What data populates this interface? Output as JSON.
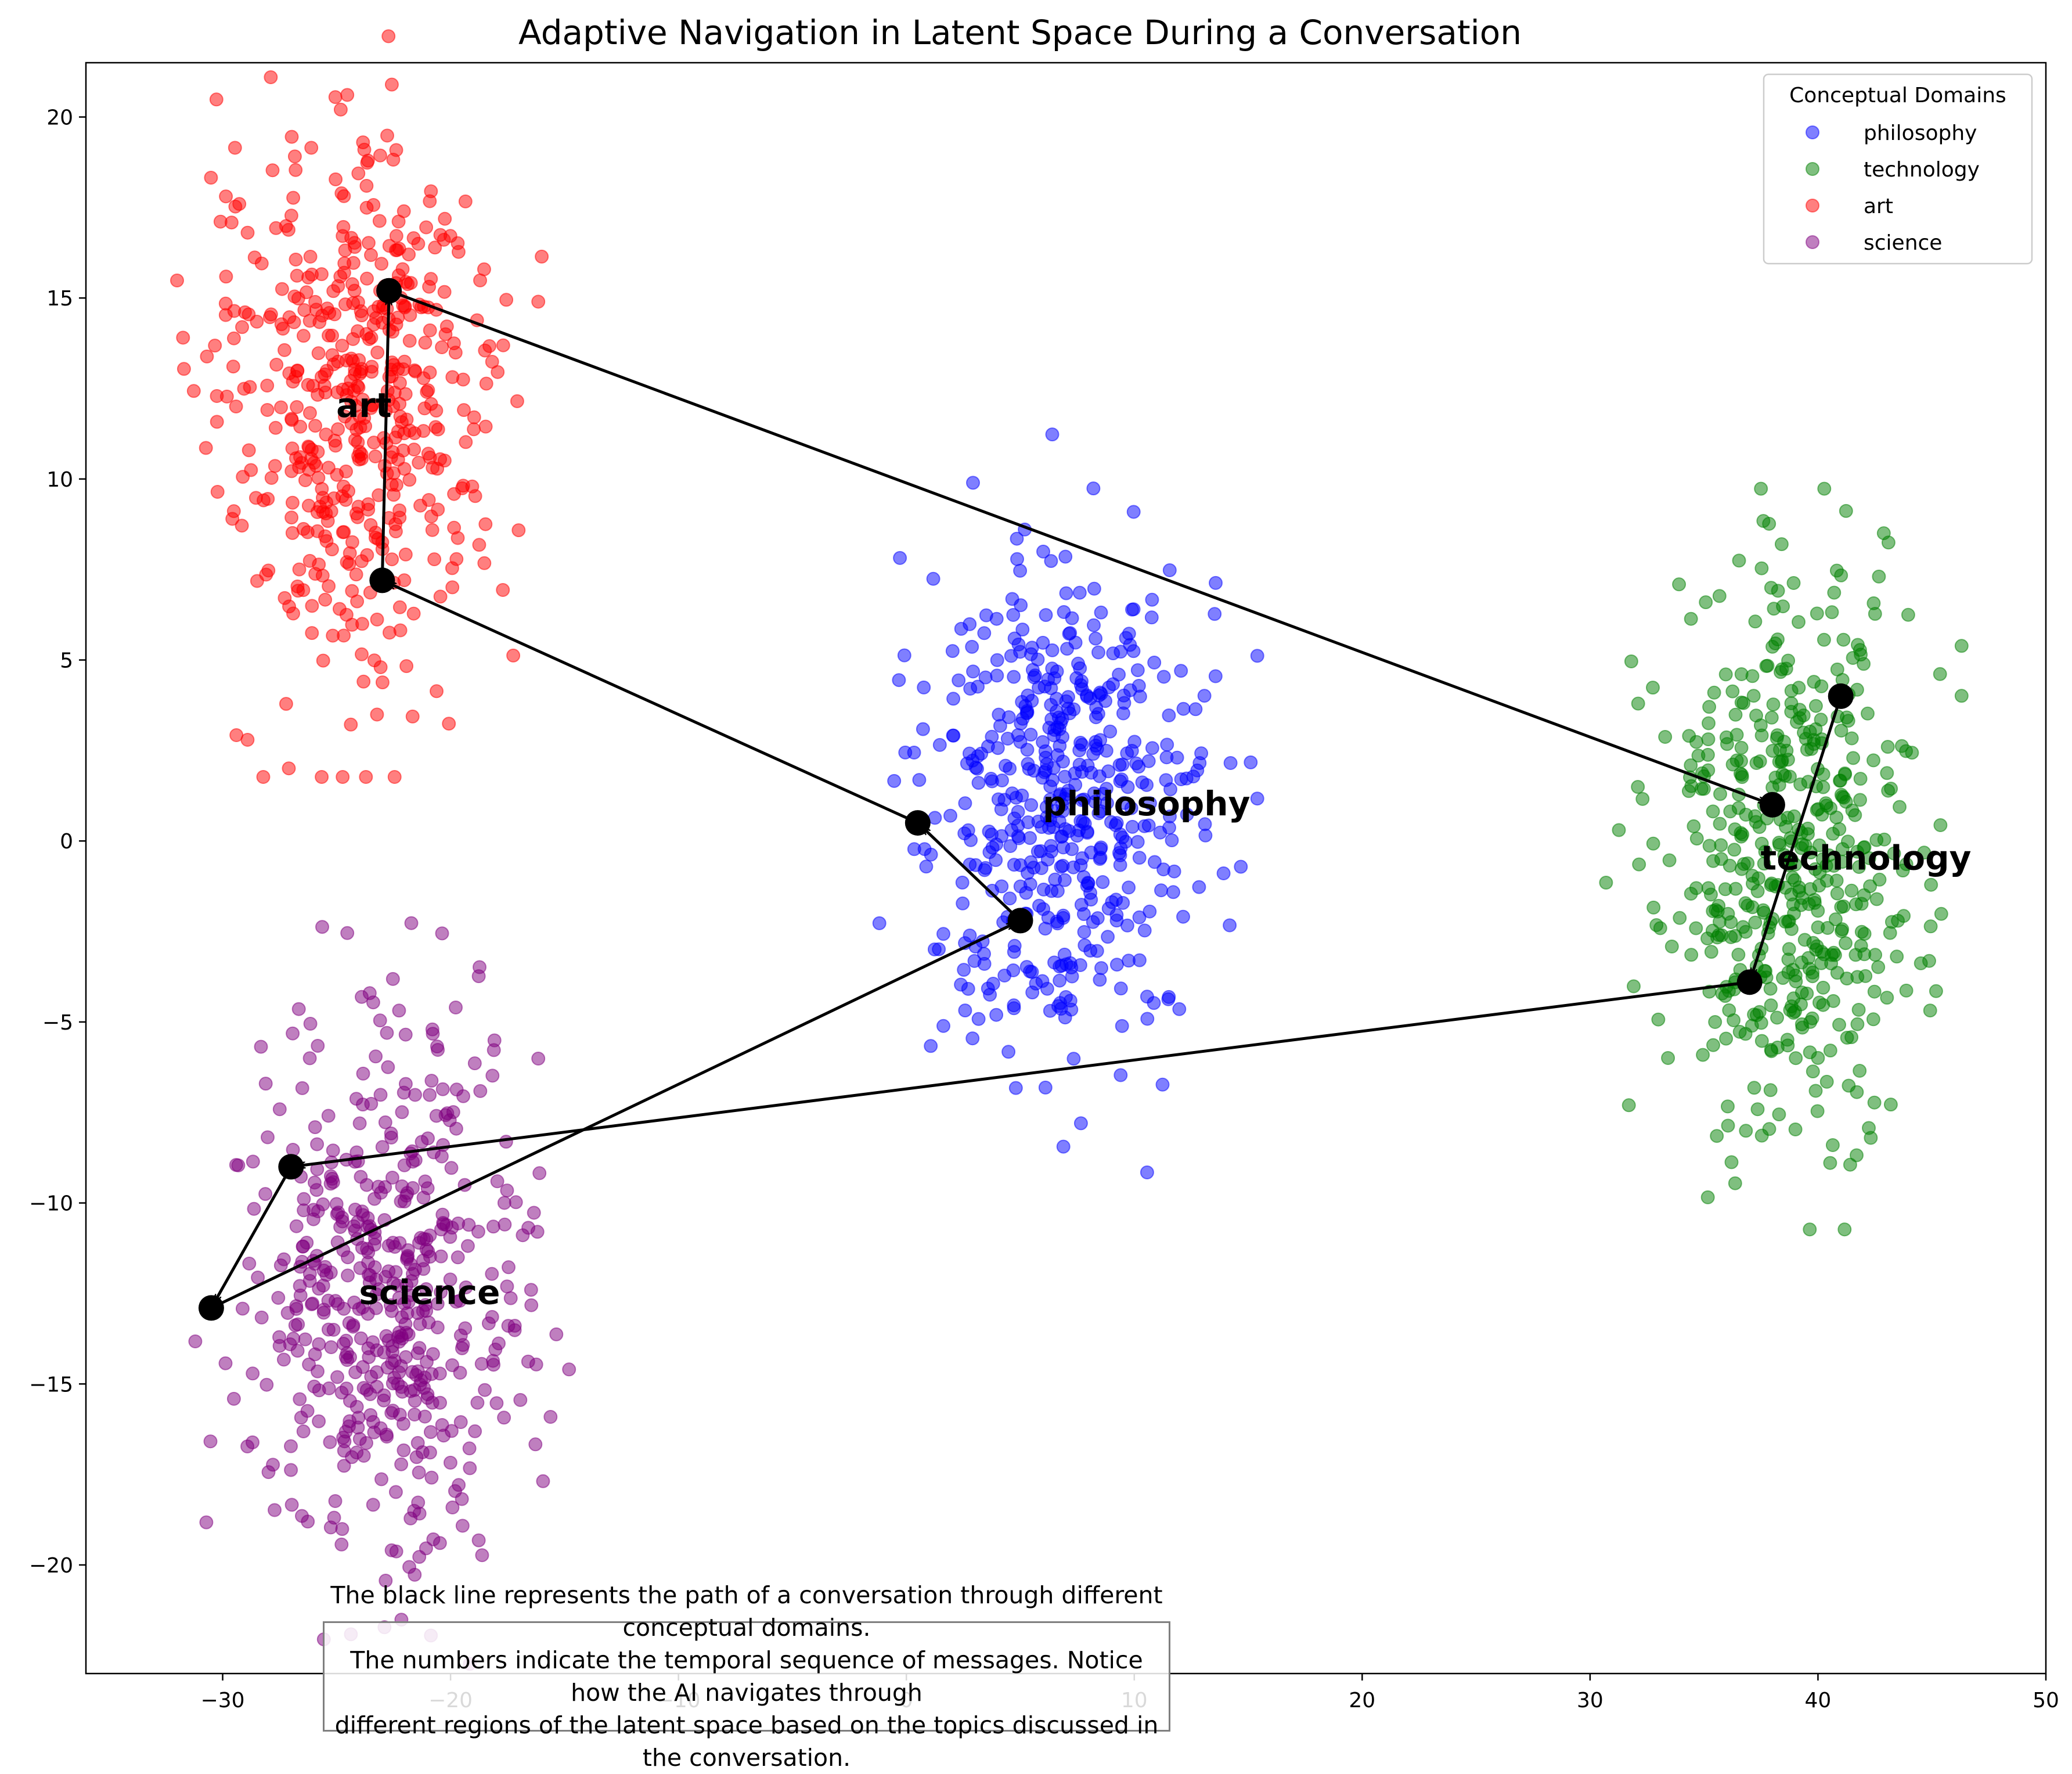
{
  "chart_data": {
    "type": "scatter",
    "title": "Adaptive Navigation in Latent Space During a Conversation",
    "xlabel": "",
    "ylabel": "",
    "xlim": [
      -36,
      50
    ],
    "ylim": [
      -23,
      21.5
    ],
    "xticks": [
      -30,
      -20,
      -10,
      0,
      10,
      20,
      30,
      40,
      50
    ],
    "yticks": [
      -20,
      -15,
      -10,
      -5,
      0,
      5,
      10,
      15,
      20
    ],
    "grid": false,
    "legend": {
      "title": "Conceptual Domains",
      "placement": "top-right",
      "entries": [
        "philosophy",
        "technology",
        "art",
        "science"
      ]
    },
    "series": [
      {
        "name": "philosophy",
        "color": "#0000ff",
        "opacity": 0.5,
        "center": [
          7,
          1
        ],
        "spread": [
          4.2,
          3.6
        ],
        "count": 500
      },
      {
        "name": "technology",
        "color": "#008000",
        "opacity": 0.5,
        "center": [
          38.5,
          -0.5
        ],
        "spread": [
          3.9,
          3.6
        ],
        "count": 500
      },
      {
        "name": "art",
        "color": "#ff0000",
        "opacity": 0.5,
        "center": [
          -24,
          12
        ],
        "spread": [
          4.0,
          3.6
        ],
        "count": 500
      },
      {
        "name": "science",
        "color": "#800080",
        "opacity": 0.5,
        "center": [
          -23,
          -12.5
        ],
        "spread": [
          4.1,
          3.6
        ],
        "count": 500
      }
    ],
    "domain_labels": [
      {
        "text": "art",
        "x": -24,
        "y": 12
      },
      {
        "text": "philosophy",
        "x": 7,
        "y": 1
      },
      {
        "text": "technology",
        "x": 38.5,
        "y": -0.5
      },
      {
        "text": "science",
        "x": -23,
        "y": -12.5
      }
    ],
    "path": [
      {
        "x": 41,
        "y": 4
      },
      {
        "x": 37,
        "y": -3.9
      },
      {
        "x": -27,
        "y": -9
      },
      {
        "x": -30.5,
        "y": -12.9
      },
      {
        "x": 5,
        "y": -2.2
      },
      {
        "x": 0.5,
        "y": 0.5
      },
      {
        "x": -23,
        "y": 7.2
      },
      {
        "x": -22.7,
        "y": 15.2
      },
      {
        "x": 38,
        "y": 1
      }
    ],
    "caption": [
      "The black line represents the path of a conversation through different conceptual domains.",
      "The numbers indicate the temporal sequence of messages. Notice how the AI navigates through",
      "different regions of the latent space based on the topics discussed in the conversation."
    ]
  }
}
